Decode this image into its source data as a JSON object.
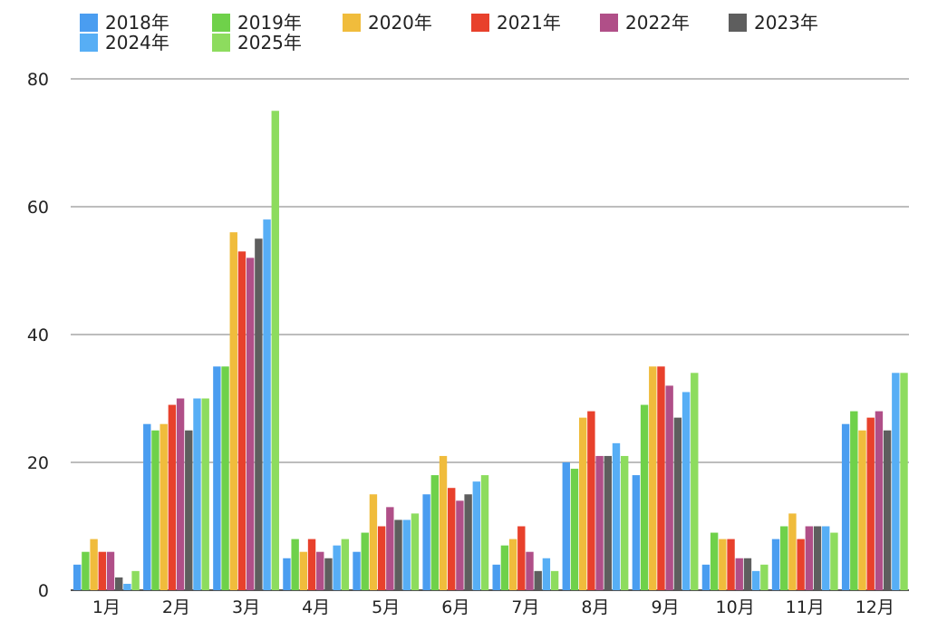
{
  "chart_data": {
    "type": "bar",
    "title": "",
    "xlabel": "",
    "ylabel": "",
    "ylim": [
      0,
      80
    ],
    "yticks": [
      0,
      20,
      40,
      60,
      80
    ],
    "grid": true,
    "legend_position": "top",
    "categories": [
      "1月",
      "2月",
      "3月",
      "4月",
      "5月",
      "6月",
      "7月",
      "8月",
      "9月",
      "10月",
      "11月",
      "12月"
    ],
    "series": [
      {
        "name": "2018年",
        "color": "#4a9df0",
        "values": [
          4,
          26,
          35,
          5,
          6,
          15,
          4,
          20,
          18,
          4,
          8,
          26
        ]
      },
      {
        "name": "2019年",
        "color": "#6fd14a",
        "values": [
          6,
          25,
          35,
          8,
          9,
          18,
          7,
          19,
          29,
          9,
          10,
          28
        ]
      },
      {
        "name": "2020年",
        "color": "#f0bc3c",
        "values": [
          8,
          26,
          56,
          6,
          15,
          21,
          8,
          27,
          35,
          8,
          12,
          25
        ]
      },
      {
        "name": "2021年",
        "color": "#e8412c",
        "values": [
          6,
          29,
          53,
          8,
          10,
          16,
          10,
          28,
          35,
          8,
          8,
          27
        ]
      },
      {
        "name": "2022年",
        "color": "#b04f88",
        "values": [
          6,
          30,
          52,
          6,
          13,
          14,
          6,
          21,
          32,
          5,
          10,
          28
        ]
      },
      {
        "name": "2023年",
        "color": "#5e5e5e",
        "values": [
          2,
          25,
          55,
          5,
          11,
          15,
          3,
          21,
          27,
          5,
          10,
          25
        ]
      },
      {
        "name": "2024年",
        "color": "#57aef5",
        "values": [
          1,
          30,
          58,
          7,
          11,
          17,
          5,
          23,
          31,
          3,
          10,
          34
        ]
      },
      {
        "name": "2025年",
        "color": "#8ddc5e",
        "values": [
          3,
          30,
          75,
          8,
          12,
          18,
          3,
          21,
          34,
          4,
          9,
          34
        ]
      }
    ]
  }
}
